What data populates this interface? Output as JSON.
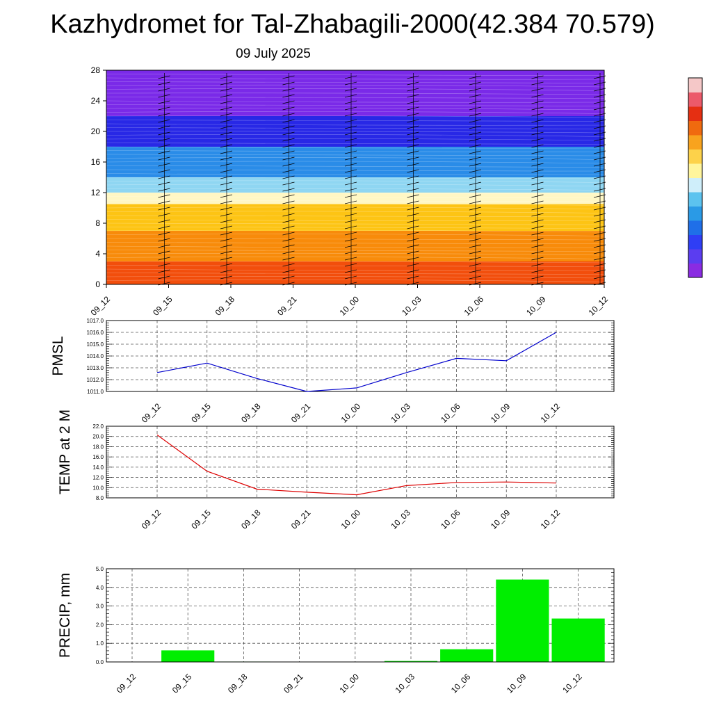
{
  "header": {
    "title": "Kazhydromet for Tal-Zhabagili-2000(42.384 70.579)",
    "date": "09 July 2025"
  },
  "chart_data": [
    {
      "type": "heatmap",
      "name": "cross-section",
      "x": [
        "09_12",
        "09_15",
        "09_18",
        "09_21",
        "10_00",
        "10_03",
        "10_06",
        "10_09",
        "10_12"
      ],
      "yticks": [
        "0",
        "4",
        "8",
        "12",
        "16",
        "20",
        "24",
        "28"
      ],
      "ylim": [
        0,
        28
      ],
      "bands_bottom_to_top": [
        {
          "y0": 0,
          "y1": 3,
          "color": "#f24e0c"
        },
        {
          "y0": 3,
          "y1": 7,
          "color": "#f88b0a"
        },
        {
          "y0": 7,
          "y1": 10.5,
          "color": "#fdc414"
        },
        {
          "y0": 10.5,
          "y1": 12,
          "color": "#fff7c4"
        },
        {
          "y0": 12,
          "y1": 14,
          "color": "#8fd6f2"
        },
        {
          "y0": 14,
          "y1": 18,
          "color": "#2a8ce8"
        },
        {
          "y0": 18,
          "y1": 22,
          "color": "#2828e6"
        },
        {
          "y0": 22,
          "y1": 28,
          "color": "#7a2ae8"
        }
      ],
      "colorbar": [
        "#8a2be2",
        "#5b3df0",
        "#2f3ef5",
        "#1f6fe8",
        "#2a9ae6",
        "#5cc3ef",
        "#cfeefa",
        "#fff59c",
        "#fdd24a",
        "#f8a31e",
        "#f06a0f",
        "#e52f12",
        "#ec5a6a",
        "#f5c8c8"
      ]
    },
    {
      "type": "line",
      "name": "PMSL",
      "ylabel": "PMSL",
      "x": [
        "09_12",
        "09_15",
        "09_18",
        "09_21",
        "10_00",
        "10_03",
        "10_06",
        "10_09",
        "10_12"
      ],
      "values": [
        1012.6,
        1013.4,
        1012.1,
        1011.0,
        1011.3,
        1012.6,
        1013.8,
        1013.6,
        1016.0
      ],
      "ylim": [
        1011.0,
        1017.0
      ],
      "yticks": [
        "1011.0",
        "1012.0",
        "1013.0",
        "1014.0",
        "1015.0",
        "1016.0",
        "1017.0"
      ],
      "color": "#0000cc"
    },
    {
      "type": "line",
      "name": "TEMP",
      "ylabel": "TEMP at 2 M",
      "x": [
        "09_12",
        "09_15",
        "09_18",
        "09_21",
        "10_00",
        "10_03",
        "10_06",
        "10_09",
        "10_12"
      ],
      "values": [
        20.3,
        13.2,
        9.7,
        9.1,
        8.6,
        10.4,
        11.0,
        11.1,
        10.9
      ],
      "ylim": [
        8.0,
        22.0
      ],
      "yticks": [
        "8.0",
        "10.0",
        "12.0",
        "14.0",
        "16.0",
        "18.0",
        "20.0",
        "22.0"
      ],
      "color": "#dd0000"
    },
    {
      "type": "bar",
      "name": "PRECIP",
      "ylabel": "PRECIP, mm",
      "x": [
        "09_12",
        "09_15",
        "09_18",
        "09_21",
        "10_00",
        "10_03",
        "10_06",
        "10_09",
        "10_12"
      ],
      "values": [
        0.0,
        0.62,
        0.02,
        0.0,
        0.0,
        0.05,
        0.68,
        4.42,
        2.33
      ],
      "ylim": [
        0.0,
        5.0
      ],
      "yticks": [
        "0.0",
        "1.0",
        "2.0",
        "3.0",
        "4.0",
        "5.0"
      ],
      "color": "#00ee00"
    }
  ]
}
